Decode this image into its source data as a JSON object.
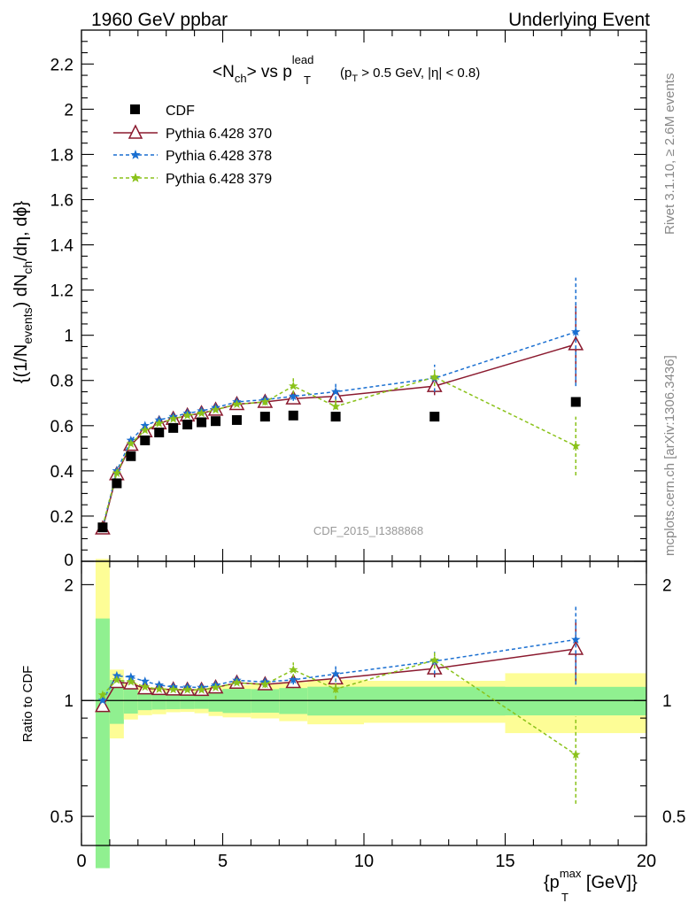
{
  "header": {
    "left": "1960 GeV ppbar",
    "right": "Underlying Event"
  },
  "plot_title": {
    "lhs": "<N",
    "lhs_sub": "ch",
    "mid": "> vs p",
    "mid_sup": "lead",
    "mid_sub": "T",
    "cut_open": "(p",
    "cut_sub": "T",
    "cut_rest": " > 0.5 GeV, |η| < 0.8)"
  },
  "ylabel_main": {
    "a": "{(1/N",
    "a_sub": "events",
    "b": ") dN",
    "b_sub": "ch",
    "c": "/dη, dϕ}"
  },
  "ylabel_ratio": "Ratio to CDF",
  "xlabel": {
    "open": "{p",
    "sup": "max",
    "sub": "T",
    "rest": " [GeV]}"
  },
  "side_text": {
    "rivet": "Rivet 3.1.10, ≥ 2.6M events",
    "mcplots": "mcplots.cern.ch [arXiv:1306.3436]"
  },
  "watermark": "CDF_2015_I1388868",
  "colors": {
    "data": "#000000",
    "p370": "#8b1a2f",
    "p378": "#1a6fd1",
    "p379": "#8ac21a",
    "band_inner": "#90f090",
    "band_outer": "#fdfd96"
  },
  "chart_data": {
    "type": "scatter",
    "x_range": [
      0,
      20
    ],
    "x_ticks": [
      0,
      5,
      10,
      15,
      20
    ],
    "main_y_range": [
      0,
      2.35
    ],
    "main_y_ticks": [
      0.2,
      0.4,
      0.6,
      0.8,
      1,
      1.2,
      1.4,
      1.6,
      1.8,
      2,
      2.2
    ],
    "main_y_bottom_label": "0",
    "ratio_y_range": [
      0.42,
      2.3
    ],
    "ratio_y_scale": "log",
    "ratio_y_ticks": [
      0.5,
      1,
      2
    ],
    "legend_position": "top-left",
    "x": [
      0.75,
      1.25,
      1.75,
      2.25,
      2.75,
      3.25,
      3.75,
      4.25,
      4.75,
      5.5,
      6.5,
      7.5,
      9.0,
      12.5,
      17.5
    ],
    "x_low": [
      0.5,
      1.0,
      1.5,
      2.0,
      2.5,
      3.0,
      3.5,
      4.0,
      4.5,
      5.0,
      6.0,
      7.0,
      8.0,
      10.0,
      15.0
    ],
    "x_high": [
      1.0,
      1.5,
      2.0,
      2.5,
      3.0,
      3.5,
      4.0,
      4.5,
      5.0,
      6.0,
      7.0,
      8.0,
      10.0,
      15.0,
      20.0
    ],
    "data": {
      "name": "CDF",
      "values": [
        0.15,
        0.345,
        0.465,
        0.535,
        0.57,
        0.59,
        0.605,
        0.615,
        0.62,
        0.625,
        0.64,
        0.645,
        0.64,
        0.64,
        0.705
      ],
      "band_inner": [
        0.095,
        0.045,
        0.035,
        0.03,
        0.03,
        0.03,
        0.03,
        0.03,
        0.04,
        0.045,
        0.045,
        0.05,
        0.055,
        0.055,
        0.06
      ],
      "band_outer": [
        0.2,
        0.07,
        0.05,
        0.045,
        0.045,
        0.04,
        0.04,
        0.045,
        0.055,
        0.06,
        0.065,
        0.075,
        0.085,
        0.08,
        0.125
      ]
    },
    "series": [
      {
        "name": "Pythia 6.428 370",
        "marker": "triangle-open",
        "values": [
          0.145,
          0.385,
          0.515,
          0.575,
          0.61,
          0.63,
          0.645,
          0.655,
          0.67,
          0.695,
          0.705,
          0.72,
          0.73,
          0.775,
          0.96
        ],
        "errors": [
          0.005,
          0.01,
          0.01,
          0.01,
          0.01,
          0.01,
          0.01,
          0.01,
          0.01,
          0.01,
          0.015,
          0.025,
          0.03,
          0.04,
          0.17
        ]
      },
      {
        "name": "Pythia 6.428 378",
        "marker": "star",
        "values": [
          0.15,
          0.4,
          0.535,
          0.6,
          0.625,
          0.64,
          0.655,
          0.665,
          0.68,
          0.705,
          0.715,
          0.73,
          0.75,
          0.81,
          1.015
        ],
        "errors": [
          0.005,
          0.01,
          0.01,
          0.01,
          0.01,
          0.01,
          0.01,
          0.01,
          0.01,
          0.01,
          0.015,
          0.02,
          0.035,
          0.06,
          0.24
        ]
      },
      {
        "name": "Pythia 6.428 379",
        "marker": "star",
        "values": [
          0.155,
          0.39,
          0.52,
          0.58,
          0.61,
          0.63,
          0.645,
          0.655,
          0.67,
          0.695,
          0.705,
          0.775,
          0.685,
          0.815,
          0.51
        ],
        "errors": [
          0.005,
          0.01,
          0.01,
          0.01,
          0.01,
          0.01,
          0.01,
          0.01,
          0.01,
          0.01,
          0.015,
          0.035,
          0.04,
          0.04,
          0.13
        ]
      }
    ]
  }
}
